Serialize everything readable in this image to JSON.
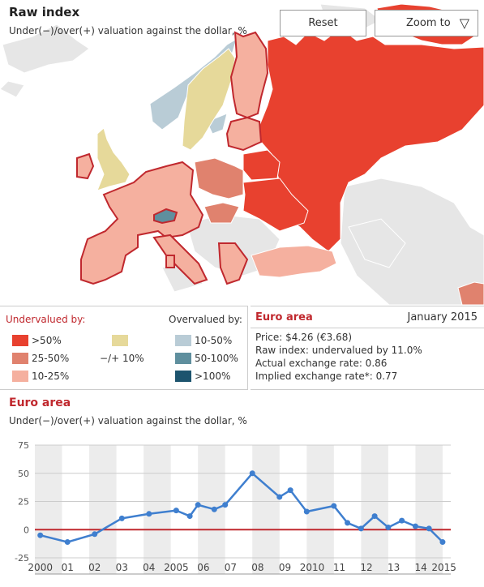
{
  "map": {
    "title": "Raw index",
    "subtitle": "Under(−)/over(+) valuation against the dollar, %",
    "reset_label": "Reset",
    "zoom_label": "Zoom to",
    "zoom_arrow": "▽",
    "colors": {
      "over50_under": "#e8412f",
      "25_50_under": "#e0826e",
      "10_25_under": "#f5b09f",
      "neutral": "#e6d99a",
      "10_50_over": "#b9ccd6",
      "50_100_over": "#5f8f9e",
      "over100_over": "#1d546e",
      "nodata": "#e6e6e6",
      "euro_border": "#c0282e"
    }
  },
  "legend": {
    "undervalued_label": "Undervalued by:",
    "overvalued_label": "Overvalued by:",
    "items": [
      {
        "label": ">50%",
        "color": "#e8412f"
      },
      {
        "label": "25-50%",
        "color": "#e0826e"
      },
      {
        "label": "10-25%",
        "color": "#f5b09f"
      },
      {
        "label": "−/+ 10%",
        "color": "#e6d99a"
      },
      {
        "label": "10-50%",
        "color": "#b9ccd6"
      },
      {
        "label": "50-100%",
        "color": "#5f8f9e"
      },
      {
        "label": ">100%",
        "color": "#1d546e"
      }
    ]
  },
  "info": {
    "title": "Euro area",
    "date": "January 2015",
    "lines": [
      "Price: $4.26 (€3.68)",
      "Raw index: undervalued by 11.0%",
      "Actual exchange rate: 0.86",
      "Implied exchange rate*: 0.77"
    ]
  },
  "chart": {
    "title": "Euro area",
    "subtitle": "Under(−)/over(+) valuation against the dollar, %"
  },
  "chart_data": {
    "type": "line",
    "title": "Euro area",
    "ylabel": "Under(−)/over(+) valuation against the dollar, %",
    "ylim": [
      -25,
      75
    ],
    "yticks": [
      75,
      50,
      25,
      0,
      -25
    ],
    "xlim": [
      2000,
      2015.3
    ],
    "xtick_labels": [
      {
        "x": 2000.2,
        "label": "2000"
      },
      {
        "x": 2001.2,
        "label": "01"
      },
      {
        "x": 2002.2,
        "label": "02"
      },
      {
        "x": 2003.2,
        "label": "03"
      },
      {
        "x": 2004.2,
        "label": "04"
      },
      {
        "x": 2005.2,
        "label": "2005"
      },
      {
        "x": 2006.2,
        "label": "06"
      },
      {
        "x": 2007.2,
        "label": "07"
      },
      {
        "x": 2008.2,
        "label": "08"
      },
      {
        "x": 2009.2,
        "label": "09"
      },
      {
        "x": 2010.2,
        "label": "2010"
      },
      {
        "x": 2011.2,
        "label": "11"
      },
      {
        "x": 2012.2,
        "label": "12"
      },
      {
        "x": 2013.2,
        "label": "13"
      },
      {
        "x": 2014.2,
        "label": "14"
      },
      {
        "x": 2015.05,
        "label": "2015"
      }
    ],
    "shaded_years": [
      2000,
      2002,
      2004,
      2006,
      2008,
      2010,
      2012,
      2014
    ],
    "series": [
      {
        "color": "#3f7fcf",
        "x": [
          2000.2,
          2001.2,
          2002.2,
          2003.2,
          2004.2,
          2005.2,
          2005.7,
          2006.0,
          2006.6,
          2007.0,
          2008.0,
          2009.0,
          2009.4,
          2010.0,
          2011.0,
          2011.5,
          2012.0,
          2012.5,
          2013.0,
          2013.5,
          2014.0,
          2014.5,
          2015.0
        ],
        "y": [
          -5,
          -11,
          -4,
          10,
          14,
          17,
          12,
          22,
          18,
          22,
          50,
          29,
          35,
          16,
          21,
          6,
          1,
          12,
          2,
          8,
          3,
          1,
          -11
        ]
      }
    ],
    "zero_line_color": "#c0282e",
    "grid": true
  }
}
